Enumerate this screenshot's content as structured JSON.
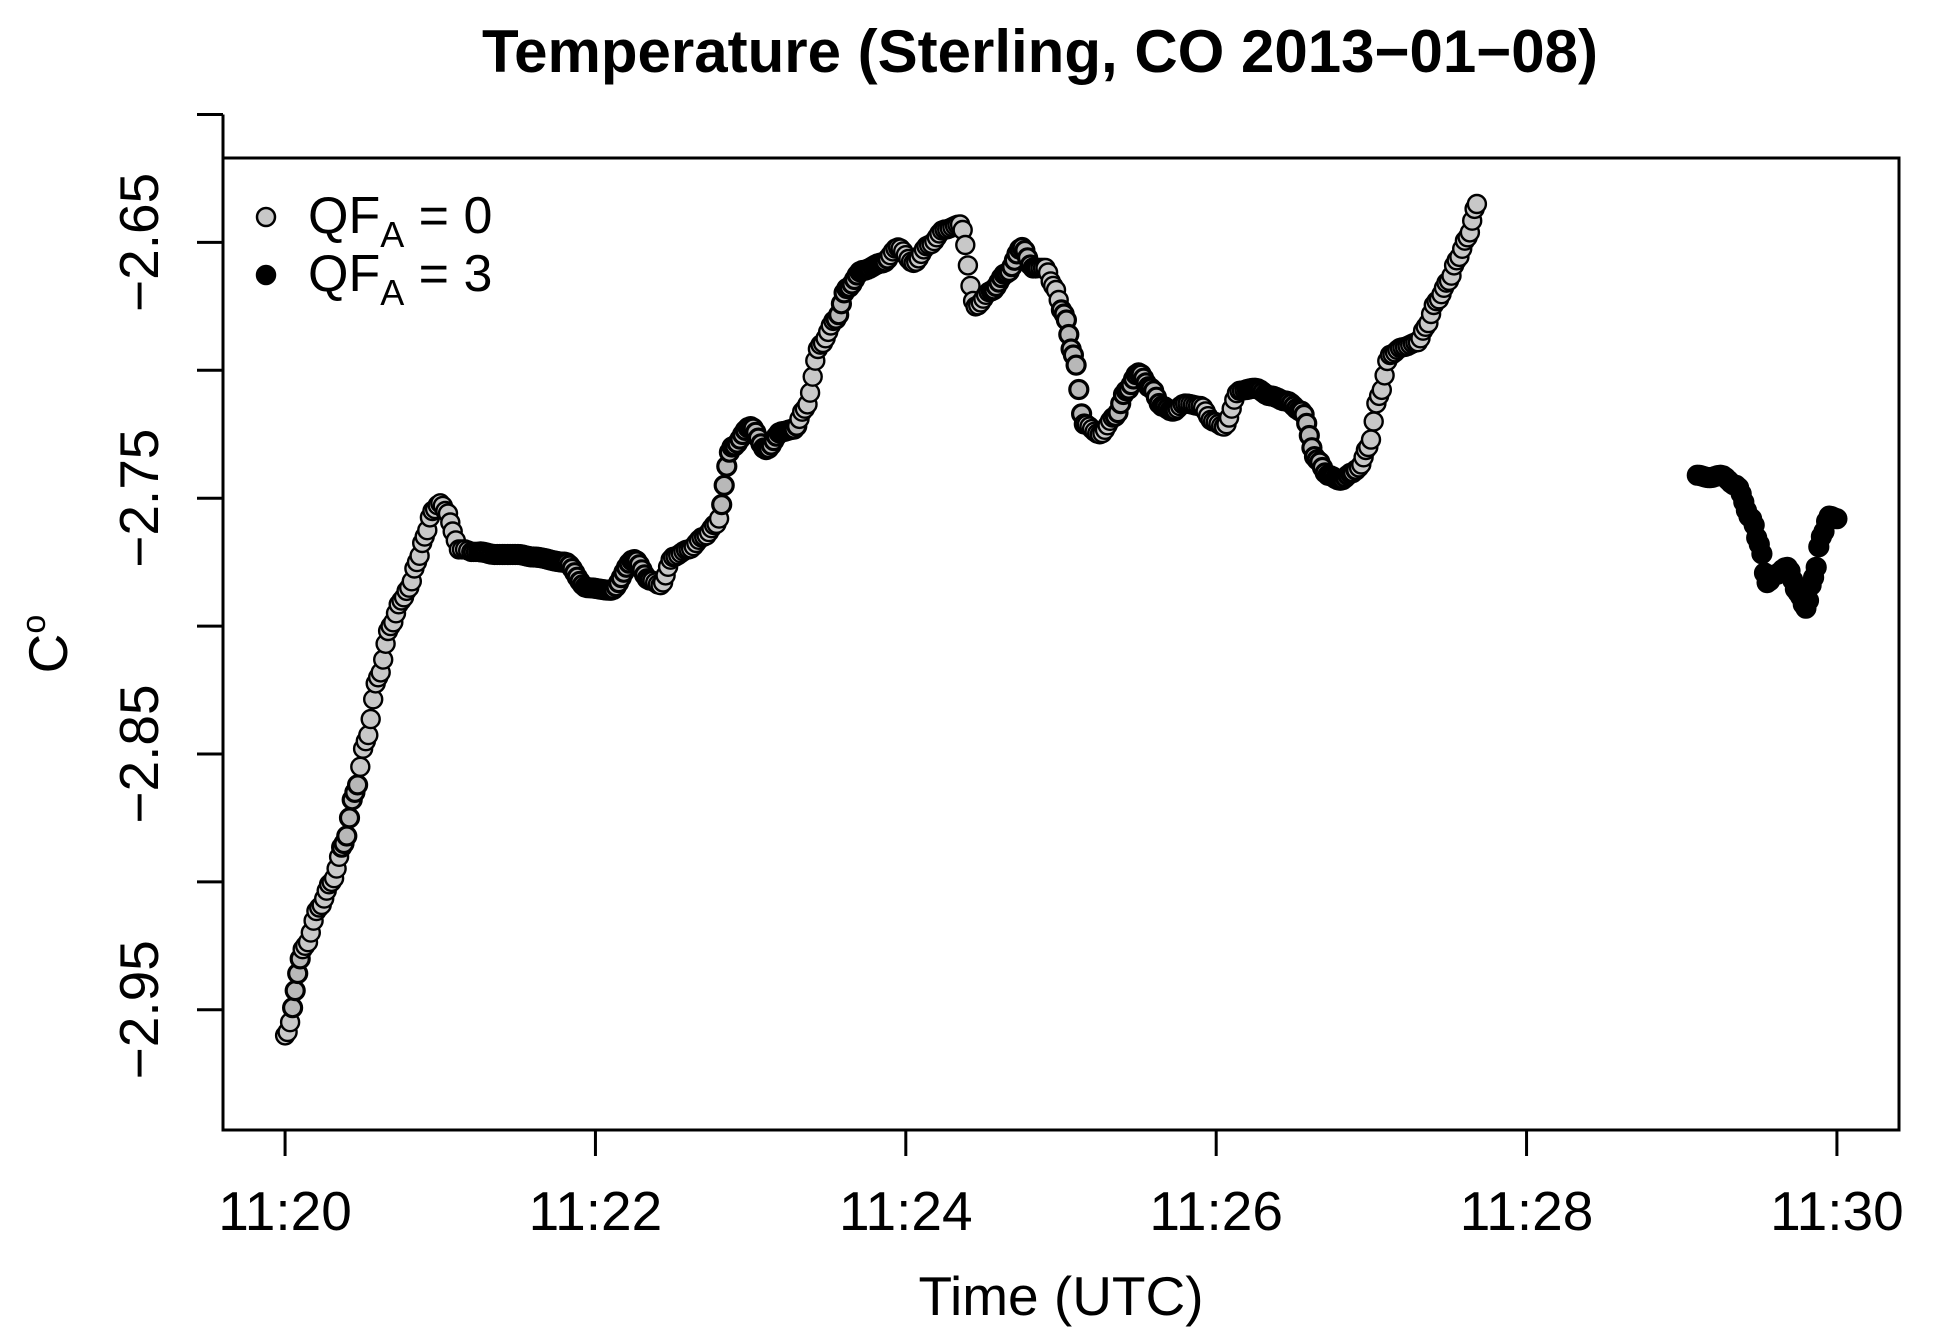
{
  "chart_data": {
    "type": "scatter",
    "title": "Temperature (Sterling, CO 2013−01−08)",
    "xlabel": "Time (UTC)",
    "ylabel": "C°",
    "x_ticks": [
      "11:20",
      "11:22",
      "11:24",
      "11:26",
      "11:28",
      "11:30"
    ],
    "y_ticks": [
      "−2.95",
      "−2.85",
      "−2.75",
      "−2.65"
    ],
    "ylabel_main": "C",
    "ylabel_sup": "o",
    "legend_position": "top-left",
    "legend": [
      {
        "prefix": "QF",
        "subscript": "A",
        "suffix": " = 0",
        "color": "#c8c8c8"
      },
      {
        "prefix": "QF",
        "subscript": "A",
        "suffix": " = 3",
        "color": "#000000"
      }
    ],
    "xlim_minutes_after_11_20": [
      -0.4,
      10.4
    ],
    "ylim": [
      -2.997,
      -2.617
    ],
    "grid": false,
    "series": [
      {
        "fill": "#c8c8c8",
        "stroke": "#000000",
        "minutes_after_11_20": [
          0.0,
          0.13,
          0.22,
          0.3,
          0.38,
          0.45,
          0.52,
          0.6,
          0.68,
          0.75,
          0.8,
          0.85,
          0.9,
          0.95,
          1.0,
          1.05,
          1.08,
          1.12,
          1.16,
          1.2,
          1.26,
          1.35,
          1.5,
          1.6,
          1.8,
          1.95,
          2.1,
          2.25,
          2.35,
          2.42,
          2.5,
          2.6,
          2.7,
          2.78,
          2.88,
          3.0,
          3.1,
          3.2,
          3.28,
          3.35,
          3.45,
          3.55,
          3.62,
          3.72,
          3.85,
          3.95,
          4.05,
          4.15,
          4.25,
          4.35,
          4.45,
          4.55,
          4.65,
          4.75,
          4.82,
          4.9,
          4.95,
          5.02,
          5.08,
          5.15,
          5.25,
          5.35,
          5.42,
          5.5,
          5.58,
          5.65,
          5.72,
          5.8,
          5.9,
          5.98,
          6.05,
          6.15,
          6.25,
          6.35,
          6.45,
          6.55,
          6.65,
          6.72,
          6.8,
          6.88,
          6.92,
          6.98,
          7.05,
          7.12,
          7.2,
          7.3,
          7.35,
          7.42,
          7.5,
          7.55,
          7.62,
          7.68
        ],
        "values": [
          -2.96,
          -2.925,
          -2.91,
          -2.9,
          -2.885,
          -2.865,
          -2.845,
          -2.82,
          -2.8,
          -2.79,
          -2.785,
          -2.775,
          -2.765,
          -2.755,
          -2.752,
          -2.756,
          -2.763,
          -2.77,
          -2.77,
          -2.771,
          -2.771,
          -2.772,
          -2.772,
          -2.773,
          -2.775,
          -2.785,
          -2.786,
          -2.774,
          -2.782,
          -2.784,
          -2.773,
          -2.77,
          -2.765,
          -2.76,
          -2.73,
          -2.722,
          -2.731,
          -2.724,
          -2.723,
          -2.715,
          -2.69,
          -2.68,
          -2.668,
          -2.661,
          -2.658,
          -2.652,
          -2.658,
          -2.651,
          -2.645,
          -2.643,
          -2.675,
          -2.669,
          -2.662,
          -2.652,
          -2.66,
          -2.66,
          -2.667,
          -2.678,
          -2.694,
          -2.721,
          -2.725,
          -2.718,
          -2.708,
          -2.701,
          -2.707,
          -2.714,
          -2.716,
          -2.713,
          -2.714,
          -2.72,
          -2.722,
          -2.708,
          -2.707,
          -2.71,
          -2.712,
          -2.716,
          -2.735,
          -2.741,
          -2.743,
          -2.74,
          -2.738,
          -2.73,
          -2.71,
          -2.694,
          -2.691,
          -2.689,
          -2.683,
          -2.673,
          -2.665,
          -2.657,
          -2.648,
          -2.635
        ]
      },
      {
        "fill": "#000000",
        "stroke": "#000000",
        "minutes_after_11_20": [
          9.1,
          9.18,
          9.25,
          9.35,
          9.45,
          9.5,
          9.55,
          9.6,
          9.68,
          9.75,
          9.8,
          9.85,
          9.9,
          9.95,
          10.0
        ],
        "values": [
          -2.741,
          -2.742,
          -2.741,
          -2.745,
          -2.758,
          -2.768,
          -2.783,
          -2.78,
          -2.777,
          -2.787,
          -2.793,
          -2.781,
          -2.765,
          -2.757,
          -2.758
        ]
      }
    ],
    "dark_segments_on_light_series": [
      [
        0.04,
        0.11
      ],
      [
        0.35,
        0.47
      ],
      [
        1.25,
        2.35
      ],
      [
        2.8,
        3.3
      ],
      [
        3.55,
        3.9
      ],
      [
        4.55,
        4.85
      ],
      [
        5.0,
        5.15
      ],
      [
        5.35,
        5.75
      ],
      [
        6.2,
        6.9
      ]
    ]
  }
}
